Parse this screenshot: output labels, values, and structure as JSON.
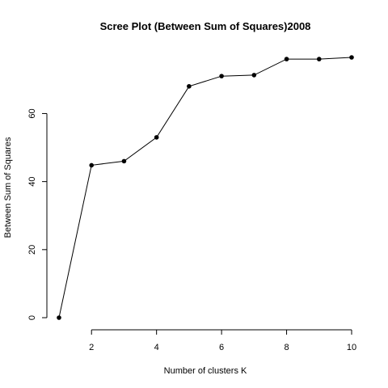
{
  "chart_data": {
    "type": "line",
    "title": "Scree Plot (Between Sum of Squares)2008",
    "xlabel": "Number of clusters K",
    "ylabel": "Between Sum of Squares",
    "x": [
      1,
      2,
      3,
      4,
      5,
      6,
      7,
      8,
      9,
      10
    ],
    "series": [
      {
        "name": "Between Sum of Squares",
        "values": [
          0,
          44.8,
          46.0,
          53.0,
          68.0,
          71.0,
          71.3,
          76.0,
          76.0,
          76.5
        ]
      }
    ],
    "x_ticks": [
      2,
      4,
      6,
      8,
      10
    ],
    "y_ticks": [
      0,
      20,
      40,
      60
    ],
    "xlim": [
      1,
      10
    ],
    "ylim": [
      0,
      76.5
    ],
    "grid": false,
    "legend": "none",
    "marker": "filled-circle",
    "line_color": "#000000",
    "marker_color": "#000000"
  }
}
